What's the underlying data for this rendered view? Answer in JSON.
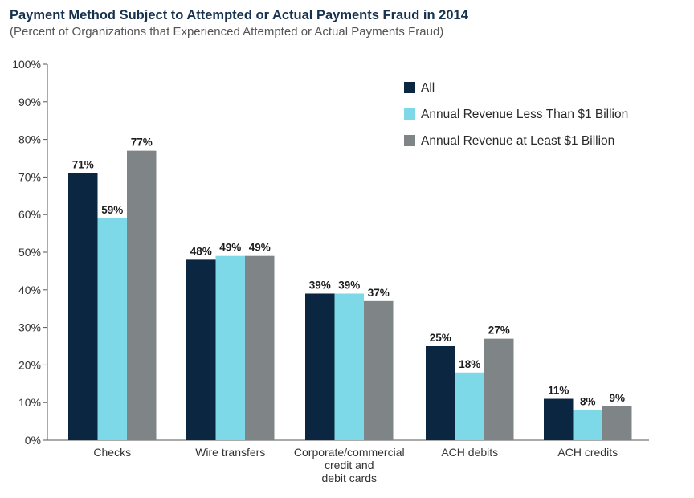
{
  "header": {
    "title": "Payment Method Subject to Attempted or Actual Payments Fraud in 2014",
    "subtitle": "(Percent of Organizations that Experienced Attempted or Actual Payments Fraud)"
  },
  "chart_data": {
    "type": "bar",
    "title": "Payment Method Subject to Attempted or Actual Payments Fraud in 2014",
    "subtitle": "(Percent of Organizations that Experienced Attempted or Actual Payments Fraud)",
    "xlabel": "",
    "ylabel": "",
    "ylim": [
      0,
      100
    ],
    "yticks": [
      "0%",
      "10%",
      "20%",
      "30%",
      "40%",
      "50%",
      "60%",
      "70%",
      "80%",
      "90%",
      "100%"
    ],
    "grid": false,
    "legend_position": "top-right",
    "categories": [
      [
        "Checks"
      ],
      [
        "Wire transfers"
      ],
      [
        "Corporate/commercial",
        "credit and",
        "debit cards"
      ],
      [
        "ACH debits"
      ],
      [
        "ACH credits"
      ]
    ],
    "series": [
      {
        "name": "All",
        "color": "#0b2640",
        "values": [
          71,
          48,
          39,
          25,
          11
        ],
        "labels": [
          "71%",
          "48%",
          "39%",
          "25%",
          "11%"
        ]
      },
      {
        "name": "Annual Revenue Less Than $1 Billion",
        "color": "#7dd9e8",
        "values": [
          59,
          49,
          39,
          18,
          8
        ],
        "labels": [
          "59%",
          "49%",
          "39%",
          "18%",
          "8%"
        ]
      },
      {
        "name": "Annual Revenue at Least $1 Billion",
        "color": "#7f8486",
        "values": [
          77,
          49,
          37,
          27,
          9
        ],
        "labels": [
          "77%",
          "49%",
          "37%",
          "27%",
          "9%"
        ]
      }
    ]
  }
}
